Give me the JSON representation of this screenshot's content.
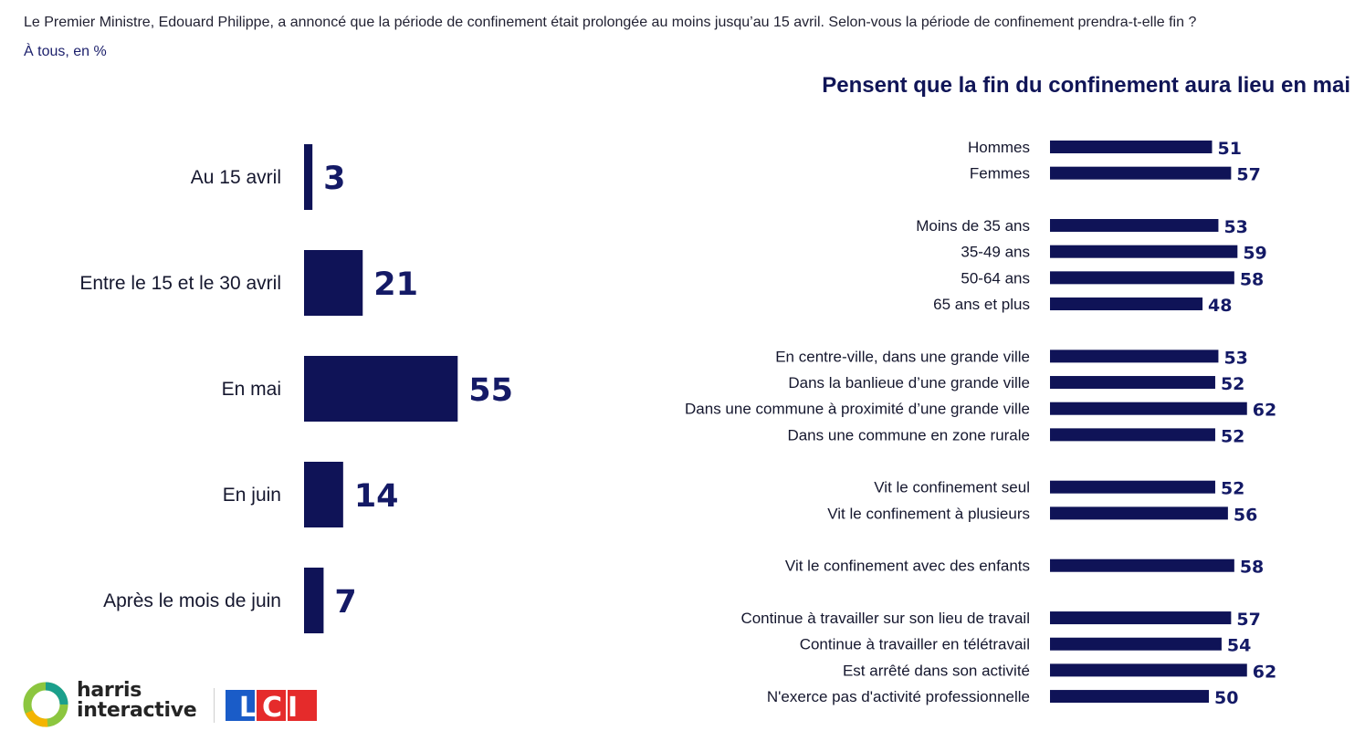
{
  "question": "Le Premier Ministre, Edouard Philippe, a annoncé que la période de confinement était prolongée au moins jusqu’au 15 avril. Selon-vous la période de confinement prendra-t-elle fin ?",
  "base": "À tous, en %",
  "colors": {
    "bar": "#0f1357",
    "value_text": "#141a66"
  },
  "chart_data": [
    {
      "type": "bar",
      "orientation": "horizontal",
      "categories": [
        "Au 15 avril",
        "Entre le 15 et le 30 avril",
        "En mai",
        "En juin",
        "Après le mois de juin"
      ],
      "values": [
        3,
        21,
        55,
        14,
        7
      ],
      "value_labels": [
        "3",
        "21",
        "55",
        "14",
        "7"
      ]
    },
    {
      "type": "bar",
      "orientation": "horizontal",
      "title": "Pensent que la fin du confinement aura lieu en mai",
      "groups": [
        {
          "categories": [
            "Hommes",
            "Femmes"
          ],
          "values": [
            51,
            57
          ]
        },
        {
          "categories": [
            "Moins de 35 ans",
            "35-49 ans",
            "50-64 ans",
            "65 ans et plus"
          ],
          "values": [
            53,
            59,
            58,
            48
          ]
        },
        {
          "categories": [
            "En centre-ville, dans une grande ville",
            "Dans la banlieue d’une grande ville",
            "Dans une commune à proximité d’une grande ville",
            "Dans une commune en zone rurale"
          ],
          "values": [
            53,
            52,
            62,
            52
          ]
        },
        {
          "categories": [
            "Vit le confinement seul",
            "Vit le confinement à plusieurs"
          ],
          "values": [
            52,
            56
          ]
        },
        {
          "categories": [
            "Vit le confinement avec des enfants"
          ],
          "values": [
            58
          ]
        },
        {
          "categories": [
            "Continue à travailler sur son lieu de travail",
            "Continue à travailler en télétravail",
            "Est arrêté dans son activité",
            "N'exerce pas d'activité professionnelle"
          ],
          "values": [
            57,
            54,
            62,
            50
          ]
        }
      ]
    }
  ],
  "logos": {
    "harris": {
      "line1": "harris",
      "line2": "interactive"
    },
    "lci": {
      "text": "LCI"
    }
  }
}
